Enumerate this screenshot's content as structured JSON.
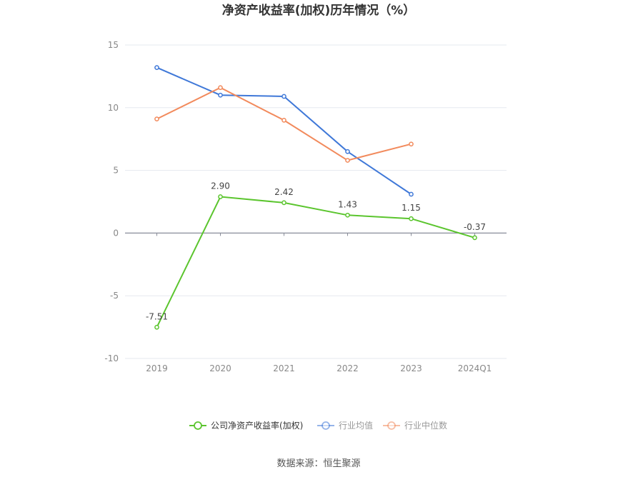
{
  "chart_data": {
    "type": "line",
    "title": "净资产收益率(加权)历年情况（%）",
    "categories": [
      "2019",
      "2020",
      "2021",
      "2022",
      "2023",
      "2024Q1"
    ],
    "ylim": [
      -10,
      15
    ],
    "yticks": [
      "15",
      "10",
      "5",
      "0",
      "-5",
      "-10"
    ],
    "ytick_values": [
      15,
      10,
      5,
      0,
      -5,
      -10
    ],
    "grid": true,
    "legend_position": "bottom",
    "series": [
      {
        "name": "公司净资产收益率(加权)",
        "color": "#5bc52e",
        "values": [
          -7.51,
          2.9,
          2.42,
          1.43,
          1.15,
          -0.37
        ],
        "labels": [
          "-7.51",
          "2.90",
          "2.42",
          "1.43",
          "1.15",
          "-0.37"
        ]
      },
      {
        "name": "行业均值",
        "color": "#3f78d8",
        "values": [
          13.2,
          11.0,
          10.9,
          6.5,
          3.1,
          null
        ]
      },
      {
        "name": "行业中位数",
        "color": "#f28a5c",
        "values": [
          9.1,
          11.6,
          9.0,
          5.8,
          7.1,
          null
        ]
      }
    ]
  },
  "source": "数据来源：恒生聚源"
}
